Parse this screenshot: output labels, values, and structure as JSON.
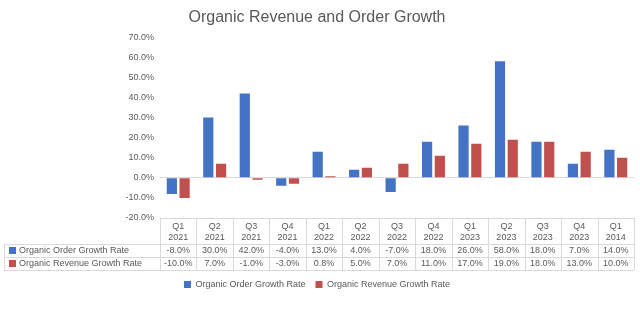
{
  "chart_data": {
    "type": "bar",
    "title": "Organic Revenue and Order Growth",
    "categories": [
      "Q1 2021",
      "Q2 2021",
      "Q3 2021",
      "Q4 2021",
      "Q1 2022",
      "Q2 2022",
      "Q3 2022",
      "Q4 2022",
      "Q1 2023",
      "Q2 2023",
      "Q3 2023",
      "Q4 2023",
      "Q1 2014"
    ],
    "series": [
      {
        "name": "Organic Order Growth Rate",
        "color": "#4472c4",
        "values": [
          -8,
          30,
          42,
          -4,
          13,
          4,
          -7,
          18,
          26,
          58,
          18,
          7,
          14
        ],
        "value_labels": [
          "-8.0%",
          "30.0%",
          "42.0%",
          "-4.0%",
          "13.0%",
          "4.0%",
          "-7.0%",
          "18.0%",
          "26.0%",
          "58.0%",
          "18.0%",
          "7.0%",
          "14.0%"
        ]
      },
      {
        "name": "Organic Revenue Growth Rate",
        "color": "#c0504d",
        "values": [
          -10,
          7,
          -1,
          -3,
          0.8,
          5,
          7,
          11,
          17,
          19,
          18,
          13,
          10
        ],
        "value_labels": [
          "-10.0%",
          "7.0%",
          "-1.0%",
          "-3.0%",
          "0.8%",
          "5.0%",
          "7.0%",
          "11.0%",
          "17.0%",
          "19.0%",
          "18.0%",
          "13.0%",
          "10.0%"
        ]
      }
    ],
    "ylim": [
      -20,
      70
    ],
    "yticks": [
      {
        "value": -20,
        "label": "-20.0%"
      },
      {
        "value": -10,
        "label": "-10.0%"
      },
      {
        "value": 0,
        "label": "0.0%"
      },
      {
        "value": 10,
        "label": "10.0%"
      },
      {
        "value": 20,
        "label": "20.0%"
      },
      {
        "value": 30,
        "label": "30.0%"
      },
      {
        "value": 40,
        "label": "40.0%"
      },
      {
        "value": 50,
        "label": "50.0%"
      },
      {
        "value": 60,
        "label": "60.0%"
      },
      {
        "value": 70,
        "label": "70.0%"
      }
    ],
    "grid": false,
    "legend": "bottom"
  }
}
